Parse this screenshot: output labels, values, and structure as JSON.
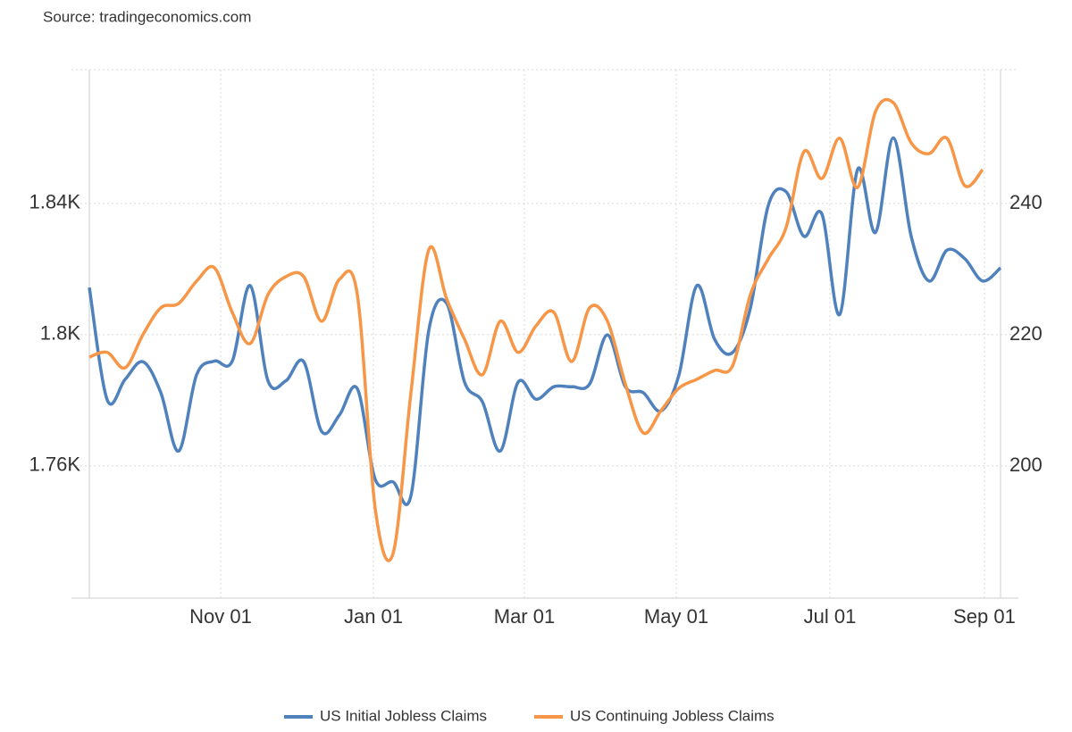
{
  "chart_data": {
    "type": "line",
    "source": "Source: tradingeconomics.com",
    "categories": [
      null,
      null,
      null,
      null,
      null,
      null,
      null,
      null,
      null,
      null,
      null,
      null,
      null,
      null,
      null,
      null,
      null,
      null,
      null,
      null,
      null,
      null,
      null,
      null,
      null,
      null,
      null,
      null,
      null,
      null,
      null,
      null,
      null,
      null,
      null,
      null,
      null,
      null,
      null,
      null,
      null,
      null,
      null,
      null,
      null,
      null,
      null,
      null,
      null,
      null,
      null,
      null
    ],
    "xticks": [
      {
        "value": 7.35,
        "label": "Nov 01"
      },
      {
        "value": 15.9,
        "label": "Jan 01"
      },
      {
        "value": 24.35,
        "label": "Mar 01"
      },
      {
        "value": 32.85,
        "label": "May 01"
      },
      {
        "value": 41.45,
        "label": "Jul 01"
      },
      {
        "value": 50.1,
        "label": "Sep 01"
      }
    ],
    "ylim": [
      1719.7,
      1880.8
    ],
    "yticks": [
      {
        "value": 1760,
        "label": "1.76K"
      },
      {
        "value": 1800,
        "label": "1.8K"
      },
      {
        "value": 1840,
        "label": "1.84K"
      }
    ],
    "y2lim": [
      179.9,
      260.4
    ],
    "y2ticks": [
      200,
      220,
      240
    ],
    "grid": true,
    "legend": "bottom",
    "series": [
      {
        "name": "US Initial Jobless Claims",
        "color": "#4f81bd",
        "axis": "y2",
        "values": [
          227.2,
          210.1,
          213.2,
          215.9,
          211.2,
          202.3,
          213.9,
          216,
          216,
          227.5,
          213,
          213,
          215.9,
          205.3,
          207.8,
          211.8,
          198,
          197.6,
          195.5,
          220.7,
          224.8,
          212.8,
          209.8,
          202.3,
          212.8,
          210.2,
          212.1,
          212.1,
          212.5,
          220,
          212.1,
          211.2,
          208.4,
          213.9,
          227.5,
          219.3,
          217.3,
          224.1,
          239.7,
          241.8,
          235,
          238.4,
          223.1,
          245.2,
          235.6,
          250,
          235,
          228.2,
          232.9,
          231.6,
          228.2,
          230.2
        ]
      },
      {
        "name": "US Continuing Jobless Claims",
        "color": "#f79646",
        "axis": "y",
        "values": [
          1793.2,
          1794.6,
          1789.9,
          1800,
          1808.2,
          1809.5,
          1816.3,
          1820.4,
          1806.8,
          1797.3,
          1812.2,
          1817.7,
          1817.7,
          1804.1,
          1816.9,
          1812.2,
          1747,
          1733.3,
          1782.3,
          1825.9,
          1810.9,
          1798.6,
          1787.8,
          1804.1,
          1794.6,
          1802.7,
          1806.8,
          1791.8,
          1808.2,
          1804.1,
          1785,
          1770.1,
          1776.9,
          1783.7,
          1786.4,
          1789.1,
          1790.5,
          1812.2,
          1823.1,
          1832.7,
          1855.8,
          1847.6,
          1859.9,
          1844.9,
          1868,
          1870.7,
          1858.5,
          1855.2,
          1859.9,
          1845.4,
          1850.3,
          null
        ]
      }
    ]
  }
}
